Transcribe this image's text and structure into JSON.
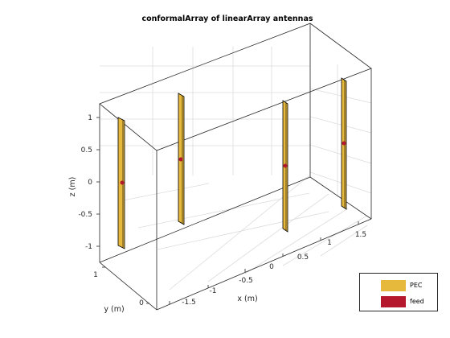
{
  "title": "conformalArray of linearArray antennas",
  "axes": {
    "xlabel": "x (m)",
    "ylabel": "y (m)",
    "zlabel": "z (m)",
    "x_ticks": [
      "-1.5",
      "-1",
      "-0.5",
      "0",
      "0.5",
      "1",
      "1.5"
    ],
    "y_ticks": [
      "0",
      "1"
    ],
    "z_ticks": [
      "-1",
      "-0.5",
      "0",
      "0.5",
      "1"
    ]
  },
  "legend": {
    "items": [
      {
        "label": "PEC",
        "color": "#e6b93c"
      },
      {
        "label": "feed",
        "color": "#b5172c"
      }
    ]
  },
  "colors": {
    "pec": "#e6b93c",
    "pec_edge": "#000000",
    "feed": "#b5172c",
    "box": "#262626",
    "grid": "#dcdcdc"
  }
}
